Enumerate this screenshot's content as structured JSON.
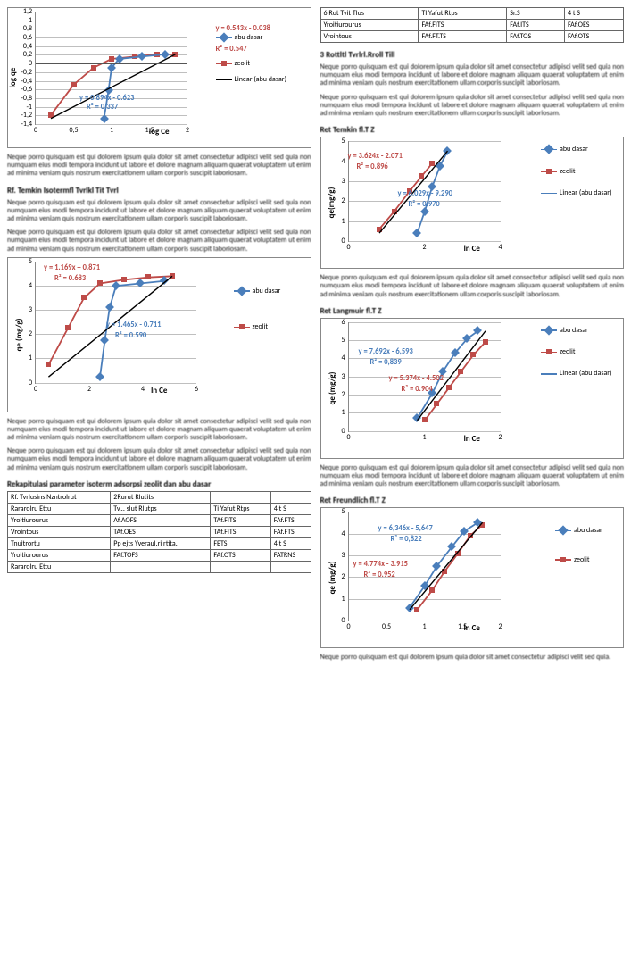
{
  "colors": {
    "abu": "#4a7ebb",
    "zeolit": "#be4b48",
    "trend": "#000000",
    "grid": "#bfbfbf"
  },
  "legends": {
    "abu": "abu dasar",
    "zeolit": "zeolit",
    "linear": "Linear (abu dasar)"
  },
  "chart1": {
    "xlabel": "log Ce",
    "ylabel": "log qe",
    "yticks": [
      "1,2",
      "1",
      "0,8",
      "0,6",
      "0,4",
      "0,2",
      "0",
      "-0,2",
      "-0,4",
      "-0,6",
      "-0,8",
      "-1",
      "-1,2",
      "-1,4"
    ],
    "xticks": [
      "0",
      "0,5",
      "1",
      "1,5",
      "2"
    ],
    "eq_red": "y = 0.543x - 0.038",
    "r2_red": "R² = 0.547",
    "eq_blue": "y = 0.894x - 0.623",
    "r2_blue": "R² = 0.337",
    "zeolit_pts": [
      [
        0.1,
        0.08
      ],
      [
        0.25,
        0.35
      ],
      [
        0.38,
        0.5
      ],
      [
        0.5,
        0.58
      ],
      [
        0.65,
        0.6
      ],
      [
        0.8,
        0.62
      ],
      [
        0.92,
        0.62
      ]
    ],
    "abu_pts": [
      [
        0.45,
        0.05
      ],
      [
        0.48,
        0.3
      ],
      [
        0.5,
        0.5
      ],
      [
        0.55,
        0.58
      ],
      [
        0.7,
        0.6
      ],
      [
        0.85,
        0.62
      ]
    ]
  },
  "chart2": {
    "xlabel": "ln Ce",
    "ylabel": "qe (mg/g)",
    "yticks": [
      "5",
      "4",
      "3",
      "2",
      "1",
      "0"
    ],
    "xticks": [
      "0",
      "2",
      "4",
      "6"
    ],
    "eq_red": "y = 1.169x + 0.871",
    "r2_red": "R² = 0.683",
    "eq_blue": "y = 1.465x - 0.711",
    "r2_blue": "R² = 0.590",
    "zeolit_pts": [
      [
        0.08,
        0.15
      ],
      [
        0.2,
        0.45
      ],
      [
        0.3,
        0.7
      ],
      [
        0.4,
        0.82
      ],
      [
        0.55,
        0.85
      ],
      [
        0.7,
        0.87
      ],
      [
        0.85,
        0.88
      ]
    ],
    "abu_pts": [
      [
        0.4,
        0.05
      ],
      [
        0.43,
        0.35
      ],
      [
        0.46,
        0.62
      ],
      [
        0.5,
        0.8
      ],
      [
        0.65,
        0.82
      ],
      [
        0.8,
        0.84
      ]
    ]
  },
  "chart3": {
    "xlabel": "ln Ce",
    "ylabel": "qe(mg/g)",
    "yticks": [
      "5",
      "4",
      "3",
      "2",
      "1",
      "0"
    ],
    "xticks": [
      "0",
      "2",
      "4"
    ],
    "eq_red": "y = 3.624x - 2.071",
    "r2_red": "R² = 0.896",
    "eq_blue": "y = 6.029x - 9.290",
    "r2_blue": "R² = 0.970",
    "zeolit_pts": [
      [
        0.2,
        0.12
      ],
      [
        0.3,
        0.3
      ],
      [
        0.4,
        0.5
      ],
      [
        0.48,
        0.65
      ],
      [
        0.55,
        0.78
      ]
    ],
    "abu_pts": [
      [
        0.45,
        0.08
      ],
      [
        0.5,
        0.3
      ],
      [
        0.55,
        0.55
      ],
      [
        0.6,
        0.75
      ],
      [
        0.65,
        0.9
      ]
    ]
  },
  "chart4": {
    "xlabel": "ln Ce",
    "ylabel": "qe (mg/g)",
    "yticks": [
      "6",
      "5",
      "4",
      "3",
      "2",
      "1",
      "0"
    ],
    "xticks": [
      "0",
      "1",
      "2"
    ],
    "eq_blue": "y = 7,692x - 6,593",
    "r2_blue": "R² = 0,839",
    "eq_red": "y = 5.374x - 4.502",
    "r2_red": "R² = 0.904",
    "zeolit_pts": [
      [
        0.5,
        0.1
      ],
      [
        0.58,
        0.25
      ],
      [
        0.66,
        0.4
      ],
      [
        0.74,
        0.55
      ],
      [
        0.82,
        0.7
      ],
      [
        0.9,
        0.82
      ]
    ],
    "abu_pts": [
      [
        0.45,
        0.12
      ],
      [
        0.55,
        0.35
      ],
      [
        0.62,
        0.55
      ],
      [
        0.7,
        0.72
      ],
      [
        0.78,
        0.85
      ],
      [
        0.85,
        0.92
      ]
    ]
  },
  "chart5": {
    "xlabel": "ln Ce",
    "ylabel": "qe (mg/g)",
    "yticks": [
      "5",
      "4",
      "3",
      "2",
      "1",
      "0"
    ],
    "xticks": [
      "0",
      "0,5",
      "1",
      "1,5",
      "2"
    ],
    "eq_blue": "y = 6,346x - 5,647",
    "r2_blue": "R² = 0,822",
    "eq_red": "y = 4.774x - 3.915",
    "r2_red": "R² = 0.952",
    "zeolit_pts": [
      [
        0.45,
        0.1
      ],
      [
        0.55,
        0.28
      ],
      [
        0.63,
        0.45
      ],
      [
        0.72,
        0.62
      ],
      [
        0.8,
        0.78
      ],
      [
        0.88,
        0.88
      ]
    ],
    "abu_pts": [
      [
        0.4,
        0.12
      ],
      [
        0.5,
        0.32
      ],
      [
        0.58,
        0.5
      ],
      [
        0.68,
        0.68
      ],
      [
        0.76,
        0.82
      ],
      [
        0.85,
        0.9
      ]
    ]
  },
  "tableA": {
    "caption": "Rekapitulasi parameter isoterm adsorpsi zeolit dan abu dasar",
    "rows": [
      [
        "Rf. Tvrlusins Nzntrolrut",
        "2Rurut Rlutits",
        "",
        ""
      ],
      [
        "Rararolru Ettu",
        "Tv... slut Rlutps",
        "Ti Yafut Rtps",
        "4 t S"
      ],
      [
        "Yroitiurourus",
        "Af.AOFS",
        "TAf.FITS",
        "FAf.FTS"
      ],
      [
        "Vrointous",
        "TAf.OES",
        "TAf.FITS",
        "FAf.FTS"
      ],
      [
        "Tnuitrortu",
        "Pp ejts Yveraul.ri rtita.",
        "FETS",
        "4 t S"
      ],
      [
        "Yroitiurourus",
        "FAf.TOFS",
        "FAf.OTS",
        "FATRNS"
      ],
      [
        "Rararolru Ettu",
        "",
        "",
        ""
      ]
    ]
  },
  "tableB": {
    "rows": [
      [
        "6 Rut Tvit Tlus",
        "Tl Yafut Rtps",
        "Sr.S",
        "4 t S"
      ],
      [
        "Yroitiurourus",
        "FAf.FITS",
        "FAf.ITS",
        "FAf.OES"
      ],
      [
        "Vrointous",
        "FAf.FT.TS",
        "FAf.TOS",
        "FAf.OTS"
      ]
    ]
  },
  "lorem": "Neque porro quisquam est qui dolorem ipsum quia dolor sit amet consectetur adipisci velit sed quia non numquam eius modi tempora incidunt ut labore et dolore magnam aliquam quaerat voluptatem ut enim ad minima veniam quis nostrum exercitationem ullam corporis suscipit laboriosam."
}
